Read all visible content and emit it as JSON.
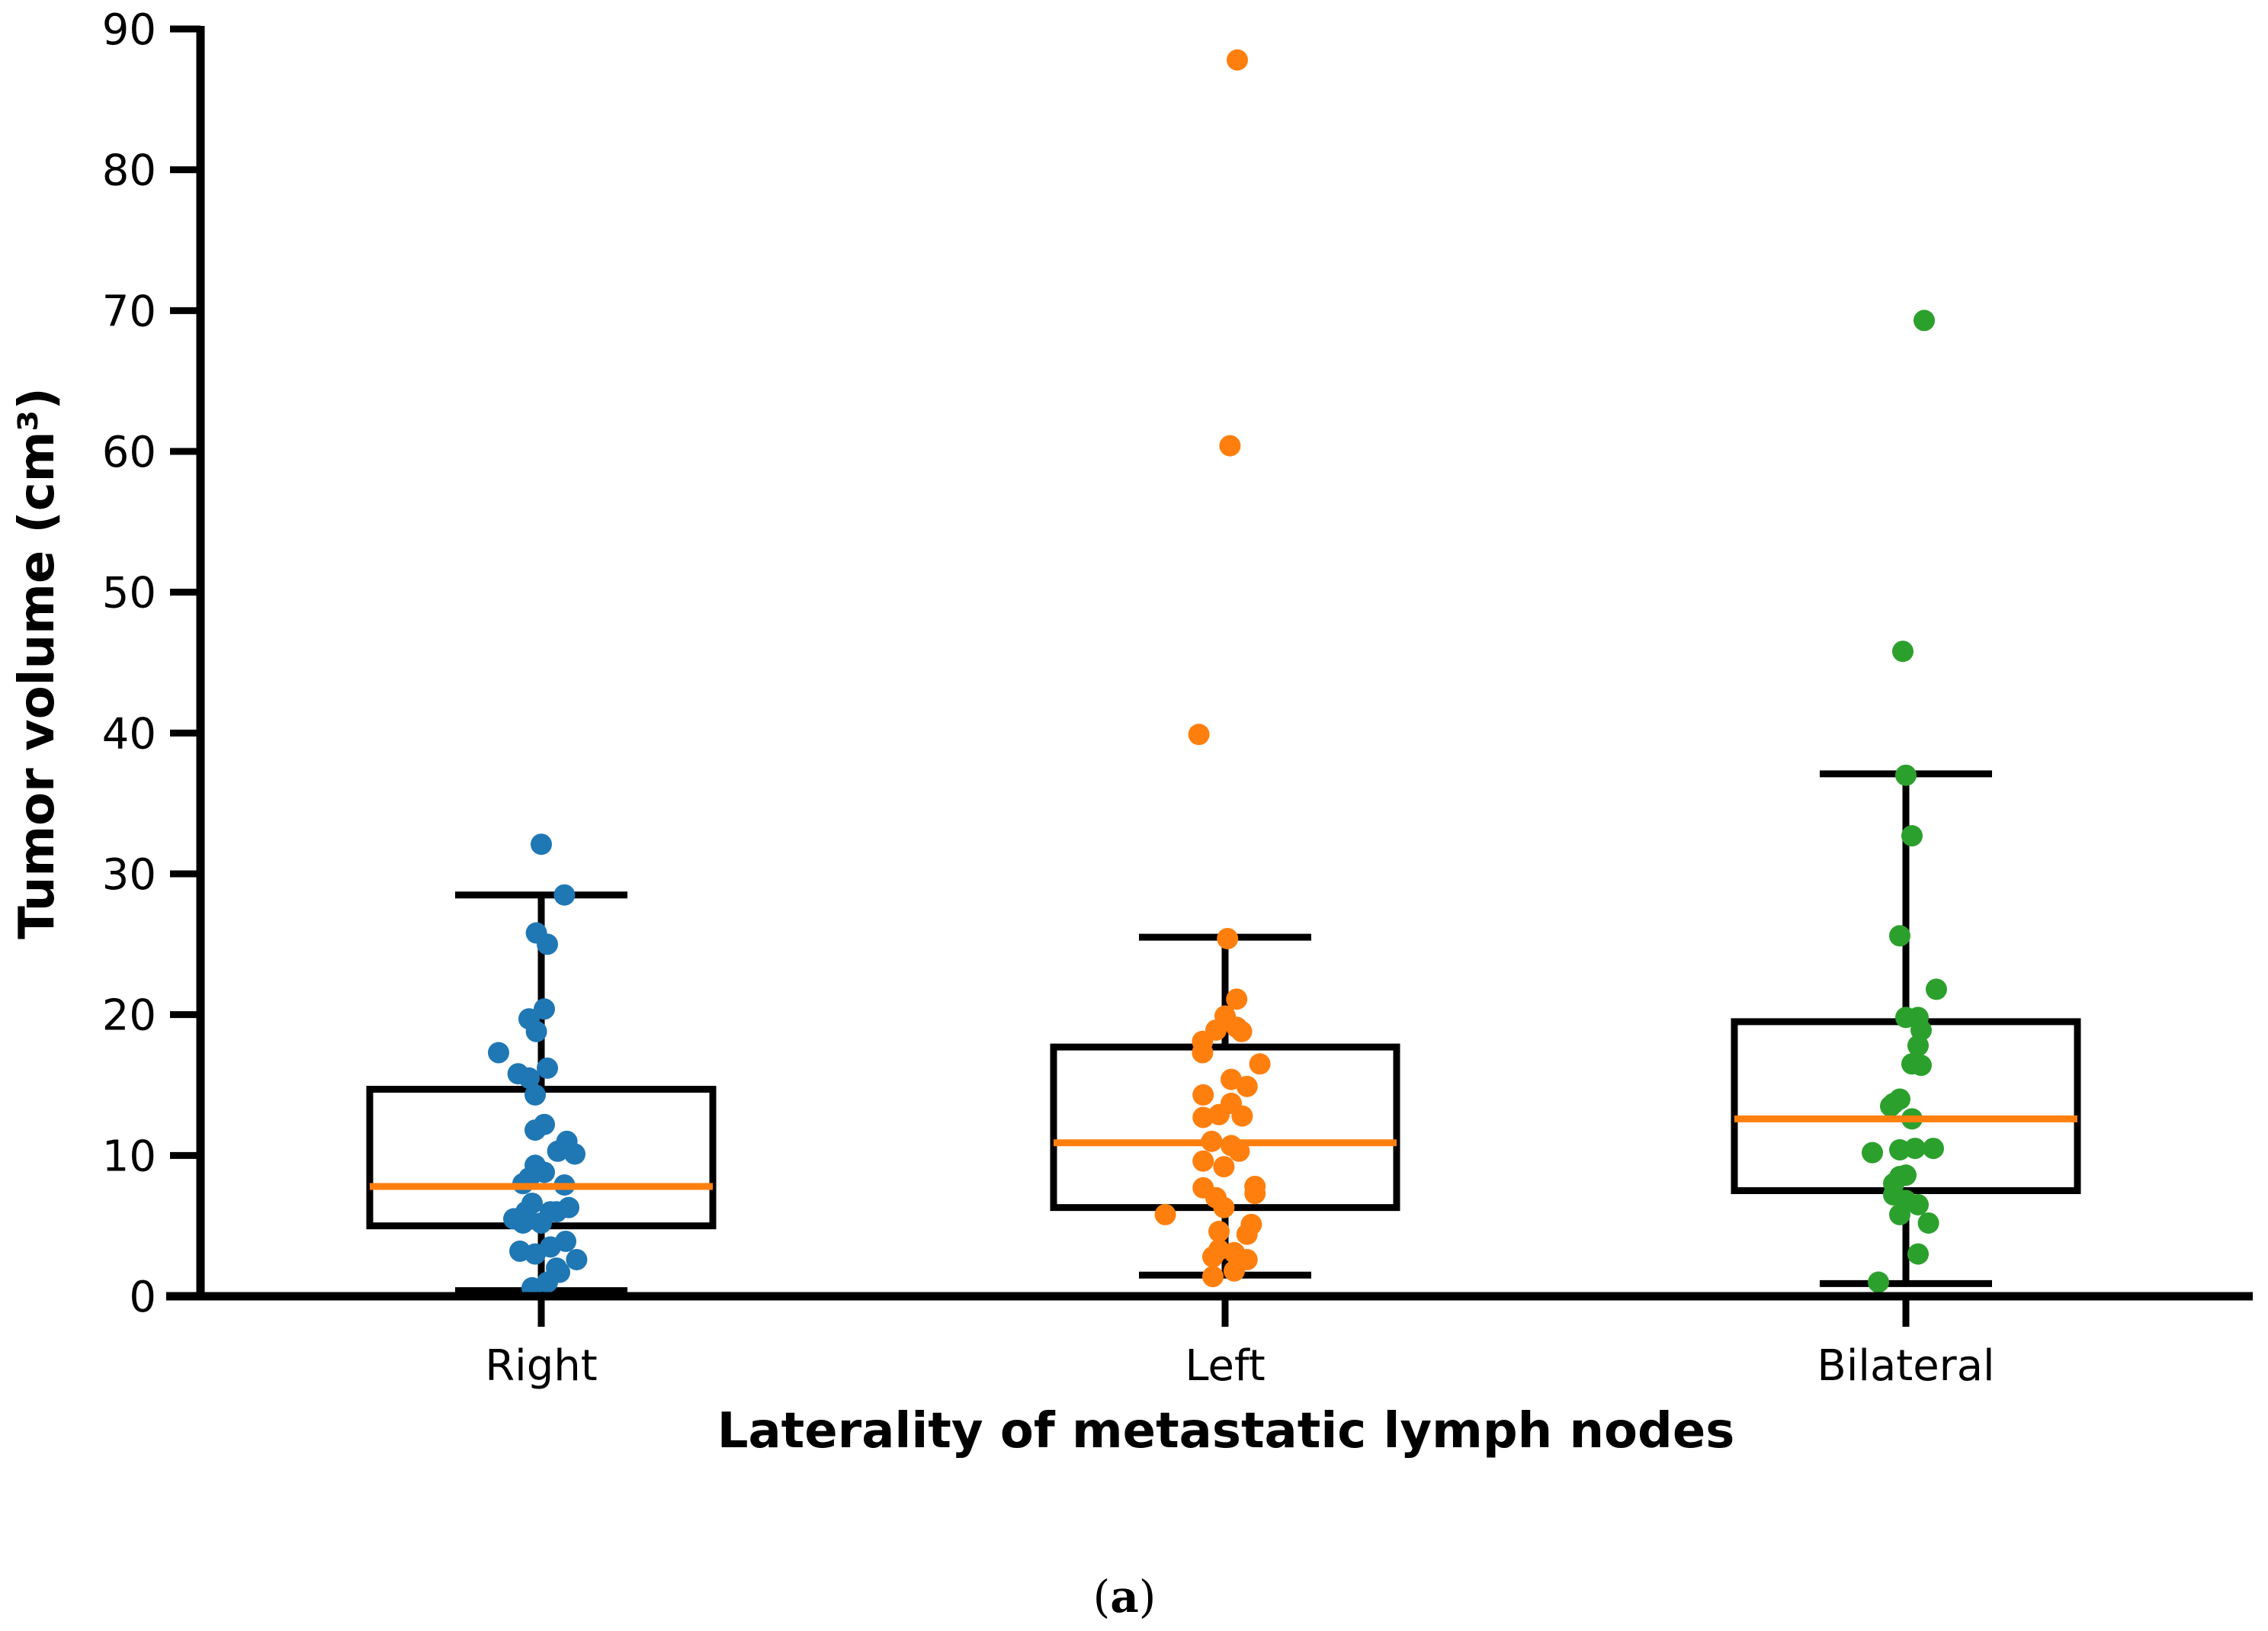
{
  "chart_data": {
    "type": "box",
    "title": "",
    "xlabel": "Laterality of metastatic lymph nodes",
    "ylabel": "Tumor volume (cm³)",
    "ylim": [
      0,
      90
    ],
    "yticks": [
      0,
      10,
      20,
      30,
      40,
      50,
      60,
      70,
      80,
      90
    ],
    "caption_parts": [
      "(",
      "a",
      ")"
    ],
    "median_color": "#ff7f0e",
    "groups": [
      {
        "name": "Right",
        "color": "#1f77b4",
        "whisker_low": 0.4,
        "q1": 5.0,
        "median": 7.8,
        "q3": 14.7,
        "whisker_high": 28.5,
        "points": [
          [
            -0.7,
            17.3
          ],
          [
            -0.38,
            15.8
          ],
          [
            -0.2,
            15.5
          ],
          [
            0.1,
            16.2
          ],
          [
            -0.2,
            19.7
          ],
          [
            0.05,
            20.4
          ],
          [
            -0.08,
            18.8
          ],
          [
            -0.08,
            25.8
          ],
          [
            0.1,
            25.0
          ],
          [
            0.38,
            28.5
          ],
          [
            0.0,
            32.1
          ],
          [
            -0.1,
            14.3
          ],
          [
            -0.1,
            11.8
          ],
          [
            0.05,
            12.2
          ],
          [
            0.27,
            10.3
          ],
          [
            0.42,
            11.0
          ],
          [
            0.55,
            10.1
          ],
          [
            -0.1,
            9.3
          ],
          [
            0.05,
            8.8
          ],
          [
            -0.2,
            8.4
          ],
          [
            -0.3,
            8.0
          ],
          [
            0.38,
            7.9
          ],
          [
            -0.15,
            6.6
          ],
          [
            -0.25,
            6.0
          ],
          [
            0.15,
            6.0
          ],
          [
            0.25,
            6.0
          ],
          [
            0.45,
            6.3
          ],
          [
            -0.45,
            5.5
          ],
          [
            -0.3,
            5.2
          ],
          [
            0.0,
            5.2
          ],
          [
            -0.35,
            3.2
          ],
          [
            -0.1,
            3.0
          ],
          [
            0.15,
            3.5
          ],
          [
            0.4,
            3.9
          ],
          [
            0.58,
            2.6
          ],
          [
            0.25,
            2.0
          ],
          [
            0.3,
            1.7
          ],
          [
            0.1,
            1.0
          ],
          [
            -0.15,
            0.6
          ]
        ]
      },
      {
        "name": "Left",
        "color": "#ff7f0e",
        "whisker_low": 1.5,
        "q1": 6.3,
        "median": 10.9,
        "q3": 17.7,
        "whisker_high": 25.5,
        "points": [
          [
            0.2,
            87.8
          ],
          [
            0.08,
            60.4
          ],
          [
            -0.43,
            39.9
          ],
          [
            0.04,
            25.4
          ],
          [
            0.19,
            21.1
          ],
          [
            0.19,
            19.1
          ],
          [
            0.27,
            18.8
          ],
          [
            0.0,
            19.9
          ],
          [
            -0.15,
            18.9
          ],
          [
            -0.37,
            18.1
          ],
          [
            -0.37,
            17.3
          ],
          [
            0.57,
            16.5
          ],
          [
            0.1,
            15.4
          ],
          [
            0.36,
            14.9
          ],
          [
            -0.36,
            14.3
          ],
          [
            0.1,
            13.7
          ],
          [
            -0.1,
            12.9
          ],
          [
            -0.36,
            12.7
          ],
          [
            0.28,
            12.8
          ],
          [
            -0.22,
            11.0
          ],
          [
            0.1,
            10.7
          ],
          [
            0.23,
            10.3
          ],
          [
            -0.36,
            9.6
          ],
          [
            -0.02,
            9.2
          ],
          [
            0.49,
            7.8
          ],
          [
            -0.36,
            7.7
          ],
          [
            0.49,
            7.3
          ],
          [
            -0.15,
            7.0
          ],
          [
            -0.02,
            6.3
          ],
          [
            -0.98,
            5.8
          ],
          [
            0.43,
            5.1
          ],
          [
            0.36,
            4.4
          ],
          [
            -0.1,
            4.6
          ],
          [
            -0.1,
            3.3
          ],
          [
            0.15,
            3.1
          ],
          [
            -0.2,
            2.8
          ],
          [
            0.36,
            2.6
          ],
          [
            0.15,
            1.8
          ],
          [
            -0.2,
            1.4
          ]
        ]
      },
      {
        "name": "Bilateral",
        "color": "#2ca02c",
        "whisker_low": 0.9,
        "q1": 7.5,
        "median": 12.6,
        "q3": 19.5,
        "whisker_high": 37.1,
        "points": [
          [
            0.3,
            69.3
          ],
          [
            -0.05,
            45.8
          ],
          [
            0.0,
            37.0
          ],
          [
            0.1,
            32.7
          ],
          [
            -0.1,
            25.6
          ],
          [
            0.5,
            21.8
          ],
          [
            0.0,
            19.8
          ],
          [
            0.2,
            19.8
          ],
          [
            0.25,
            18.9
          ],
          [
            0.2,
            17.8
          ],
          [
            0.1,
            16.5
          ],
          [
            0.25,
            16.4
          ],
          [
            -0.2,
            13.7
          ],
          [
            -0.1,
            14.0
          ],
          [
            -0.25,
            13.5
          ],
          [
            0.1,
            12.6
          ],
          [
            -0.55,
            10.2
          ],
          [
            -0.1,
            10.4
          ],
          [
            0.15,
            10.5
          ],
          [
            0.45,
            10.5
          ],
          [
            -0.1,
            8.5
          ],
          [
            0.0,
            8.6
          ],
          [
            -0.2,
            8.0
          ],
          [
            -0.2,
            7.2
          ],
          [
            0.0,
            6.8
          ],
          [
            0.2,
            6.5
          ],
          [
            -0.1,
            5.8
          ],
          [
            0.37,
            5.2
          ],
          [
            0.2,
            3.0
          ],
          [
            -0.45,
            1.0
          ]
        ]
      }
    ]
  }
}
